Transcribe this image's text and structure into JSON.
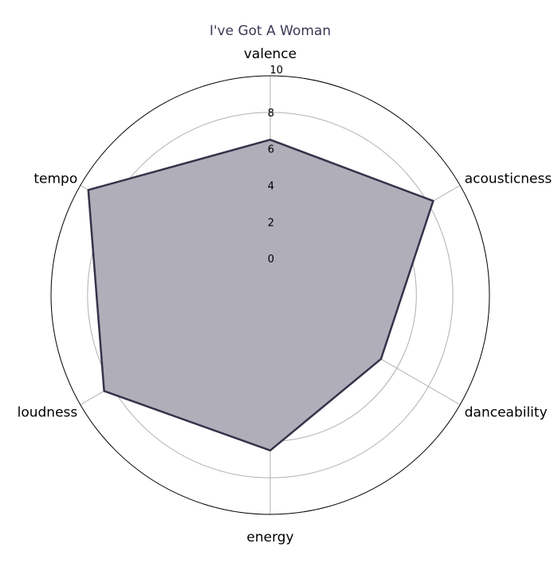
{
  "chart_data": {
    "type": "radar",
    "title": "I've Got A Woman",
    "axes": [
      "valence",
      "acousticness",
      "danceability",
      "energy",
      "loudness",
      "tempo"
    ],
    "values": [
      6.5,
      8.3,
      5.0,
      6.5,
      8.5,
      9.5
    ],
    "rlim": [
      -2,
      10
    ],
    "rticks": [
      0,
      2,
      4,
      6,
      8
    ],
    "rtick_labels": [
      "0",
      "2",
      "4",
      "6",
      "8"
    ],
    "rmax_label": "10",
    "grid": true,
    "colors": {
      "fill": "#b0aeb8",
      "line": "#35334a",
      "grid": "#b0b0b0",
      "frame": "#000000"
    }
  }
}
